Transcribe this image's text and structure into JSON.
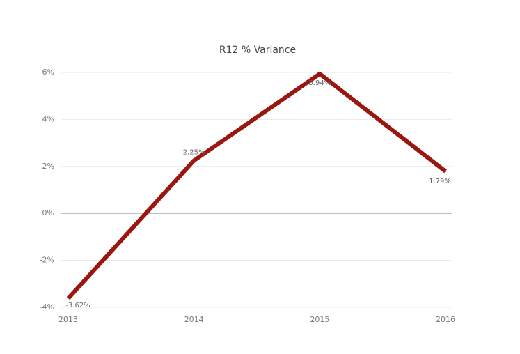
{
  "chart_data": {
    "type": "line",
    "title": "R12 % Variance",
    "categories": [
      "2013",
      "2014",
      "2015",
      "2016"
    ],
    "series": [
      {
        "name": "R12 % Variance",
        "color": "#9b160e",
        "values": [
          -3.62,
          2.25,
          5.94,
          1.79
        ],
        "value_labels": [
          "-3.62%",
          "2.25%",
          "5.94%",
          "1.79%"
        ]
      }
    ],
    "ylim": [
      -4,
      6
    ],
    "yticks": [
      {
        "value": -4,
        "label": "-4%"
      },
      {
        "value": -2,
        "label": "-2%"
      },
      {
        "value": 0,
        "label": "0%"
      },
      {
        "value": 2,
        "label": "2%"
      },
      {
        "value": 4,
        "label": "4%"
      },
      {
        "value": 6,
        "label": "6%"
      }
    ],
    "grid": true
  }
}
